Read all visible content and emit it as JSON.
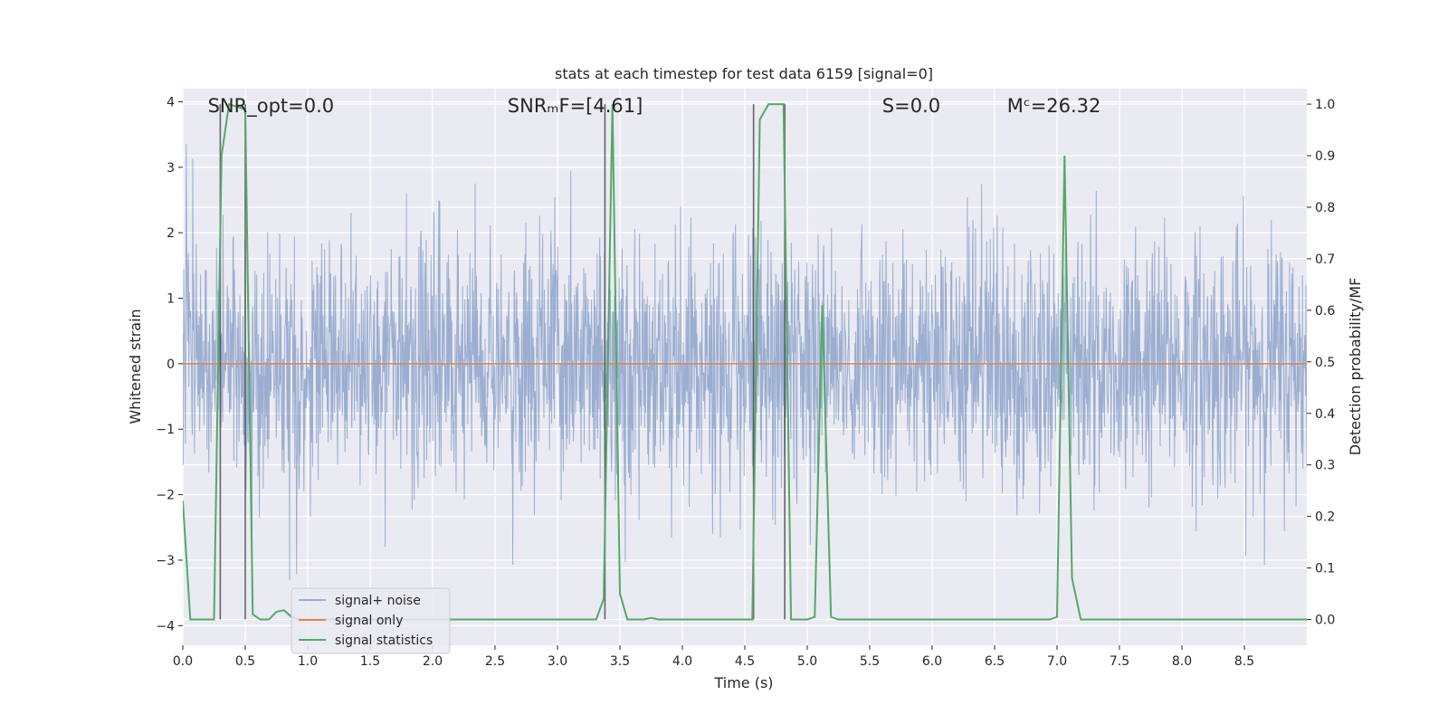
{
  "chart_data": {
    "type": "line",
    "title": "stats at each timestep for test data 6159 [signal=0]",
    "xlabel": "Time (s)",
    "ylabel_left": "Whitened strain",
    "ylabel_right": "Detection probability/MF",
    "xlim": [
      0,
      9.0
    ],
    "ylim_left": [
      -4.3,
      4.2
    ],
    "ylim_right": [
      -0.05,
      1.03
    ],
    "x_ticks": [
      0.0,
      0.5,
      1.0,
      1.5,
      2.0,
      2.5,
      3.0,
      3.5,
      4.0,
      4.5,
      5.0,
      5.5,
      6.0,
      6.5,
      7.0,
      7.5,
      8.0,
      8.5
    ],
    "x_tick_labels": [
      "0.0",
      "0.5",
      "1.0",
      "1.5",
      "2.0",
      "2.5",
      "3.0",
      "3.5",
      "4.0",
      "4.5",
      "5.0",
      "5.5",
      "6.0",
      "6.5",
      "7.0",
      "7.5",
      "8.0",
      "8.5"
    ],
    "y_ticks_left": [
      -4,
      -3,
      -2,
      -1,
      0,
      1,
      2,
      3,
      4
    ],
    "y_tick_labels_left": [
      "−4",
      "−3",
      "−2",
      "−1",
      "0",
      "1",
      "2",
      "3",
      "4"
    ],
    "y_ticks_right": [
      0.0,
      0.1,
      0.2,
      0.3,
      0.4,
      0.5,
      0.6,
      0.7,
      0.8,
      0.9,
      1.0
    ],
    "y_tick_labels_right": [
      "0.0",
      "0.1",
      "0.2",
      "0.3",
      "0.4",
      "0.5",
      "0.6",
      "0.7",
      "0.8",
      "0.9",
      "1.0"
    ],
    "grid": true,
    "legend_position": "lower-left",
    "annotations": [
      {
        "x": 0.2,
        "text": "SNR_opt=0.0"
      },
      {
        "x": 2.6,
        "text": "SNRₘF=[4.61]"
      },
      {
        "x": 5.6,
        "text": "S=0.0"
      },
      {
        "x": 6.6,
        "text": "Mᶜ=26.32"
      }
    ],
    "vertical_lines_x": [
      0.3,
      0.5,
      3.38,
      4.57,
      4.82
    ],
    "series": [
      {
        "name": "signal+ noise",
        "color": "#4c72b0",
        "axis": "left",
        "kind": "noise",
        "approx_std": 0.85,
        "approx_range": [
          -4.0,
          3.75
        ],
        "sample_rate_hz": 2048
      },
      {
        "name": "signal only",
        "color": "#dd8452",
        "axis": "left",
        "x": [
          0,
          9.0
        ],
        "y": [
          0,
          0
        ]
      },
      {
        "name": "signal statistics",
        "color": "#55a868",
        "axis": "right",
        "x": [
          0.0,
          0.06,
          0.25,
          0.31,
          0.37,
          0.5,
          0.56,
          0.62,
          0.69,
          0.75,
          0.81,
          0.87,
          0.94,
          1.0,
          1.5,
          2.0,
          2.5,
          3.0,
          3.31,
          3.37,
          3.44,
          3.5,
          3.56,
          3.69,
          3.75,
          3.81,
          4.0,
          4.5,
          4.56,
          4.62,
          4.69,
          4.81,
          4.87,
          4.94,
          5.0,
          5.06,
          5.12,
          5.19,
          5.25,
          5.5,
          6.0,
          6.5,
          6.94,
          7.0,
          7.06,
          7.12,
          7.19,
          7.5,
          8.0,
          8.5,
          9.0
        ],
        "y": [
          0.23,
          0.0,
          0.0,
          0.9,
          1.0,
          0.99,
          0.01,
          0.0,
          0.0,
          0.015,
          0.018,
          0.005,
          0.0,
          0.0,
          0.0,
          0.0,
          0.0,
          0.0,
          0.0,
          0.04,
          1.0,
          0.05,
          0.0,
          0.0,
          0.003,
          0.0,
          0.0,
          0.0,
          0.0,
          0.97,
          1.0,
          1.0,
          0.0,
          0.0,
          0.0,
          0.005,
          0.61,
          0.005,
          0.0,
          0.0,
          0.0,
          0.0,
          0.0,
          0.005,
          0.9,
          0.08,
          0.0,
          0.0,
          0.0,
          0.0,
          0.0
        ]
      }
    ]
  }
}
